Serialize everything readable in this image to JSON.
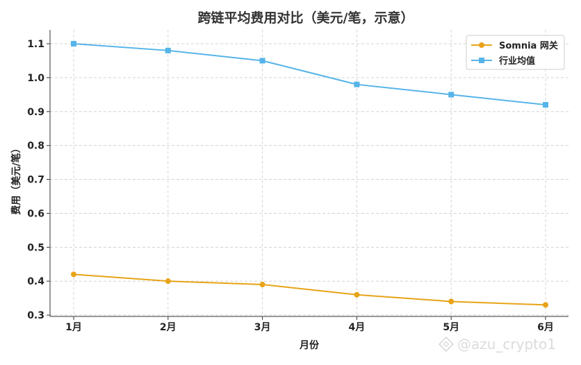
{
  "chart_data": {
    "type": "line",
    "title": "跨链平均费用对比（美元/笔，示意）",
    "xlabel": "月份",
    "ylabel": "费用（美元/笔）",
    "categories": [
      "1月",
      "2月",
      "3月",
      "4月",
      "5月",
      "6月"
    ],
    "ylim": [
      0.296,
      1.141
    ],
    "yticks": [
      "0.3",
      "0.4",
      "0.5",
      "0.6",
      "0.7",
      "0.8",
      "0.9",
      "1.0",
      "1.1"
    ],
    "grid": true,
    "legend_position": "top-right",
    "series": [
      {
        "name": "Somnia 网关",
        "values": [
          0.42,
          0.4,
          0.39,
          0.36,
          0.34,
          0.33
        ],
        "color": "#E8A317",
        "marker": "circle"
      },
      {
        "name": "行业均值",
        "values": [
          1.1,
          1.08,
          1.05,
          0.98,
          0.95,
          0.92
        ],
        "color": "#56B4E9",
        "marker": "square"
      }
    ]
  },
  "watermark": "@azu_crypto1"
}
